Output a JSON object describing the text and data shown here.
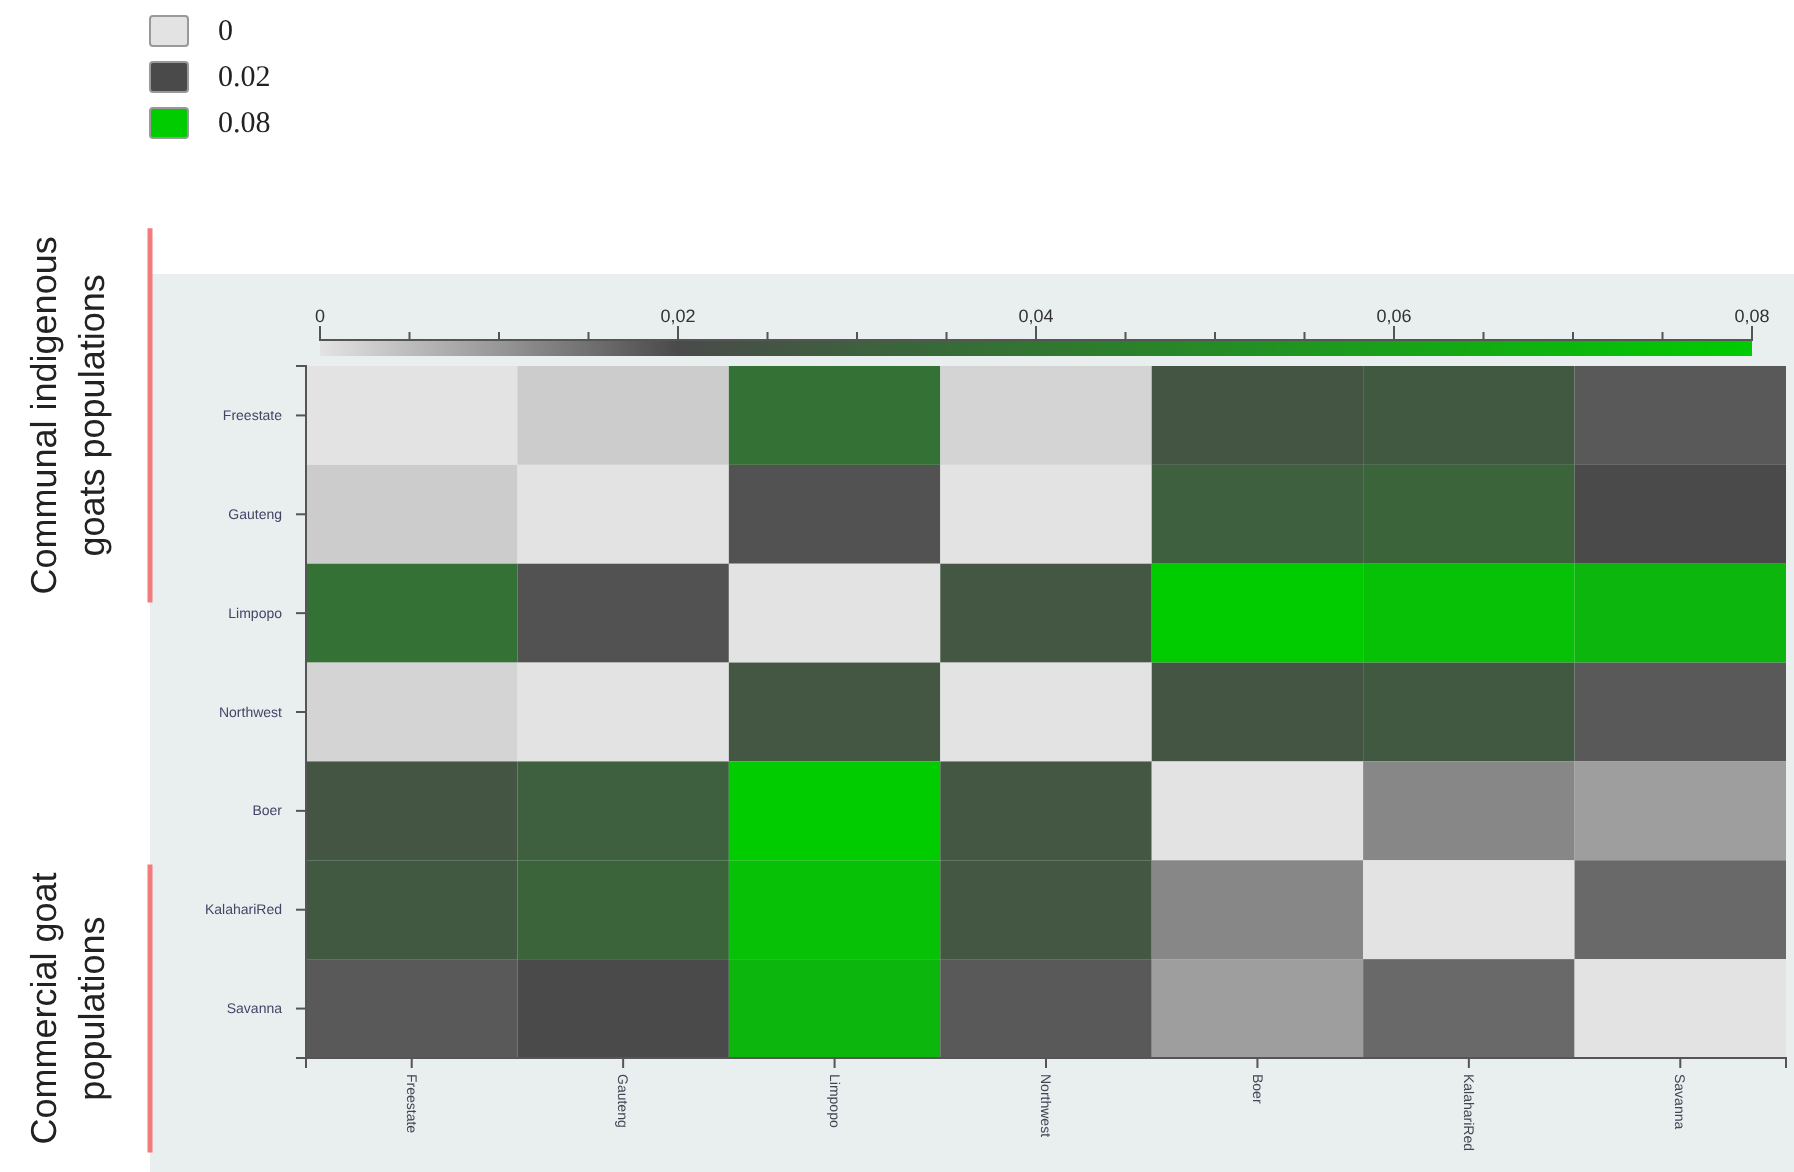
{
  "chart_data": {
    "type": "heatmap",
    "categories": [
      "Freestate",
      "Gauteng",
      "Limpopo",
      "Northwest",
      "Boer",
      "KalahariRed",
      "Savanna"
    ],
    "y_categories": [
      "Freestate",
      "Gauteng",
      "Limpopo",
      "Northwest",
      "Boer",
      "KalahariRed",
      "Savanna"
    ],
    "y2_categories": [
      "Communal indigenous goats populations",
      null,
      null,
      null,
      null,
      null,
      "Commercial goat populations"
    ],
    "cells": [
      [
        0,
        0.003,
        0.038,
        0.002,
        0.025,
        0.027,
        0.018
      ],
      [
        0.003,
        0,
        0.019,
        0,
        0.03,
        0.032,
        0.02
      ],
      [
        0.038,
        0.019,
        0,
        0.026,
        0.08,
        0.075,
        0.07
      ],
      [
        0.002,
        0,
        0.026,
        0,
        0.025,
        0.027,
        0.018
      ],
      [
        0.025,
        0.03,
        0.08,
        0.026,
        0,
        0.012,
        0.009
      ],
      [
        0.027,
        0.032,
        0.075,
        0.026,
        0.012,
        0,
        0.016
      ],
      [
        0.018,
        0.02,
        0.07,
        0.018,
        0.009,
        0.016,
        0
      ]
    ],
    "clim": [
      0,
      0.08
    ],
    "cticks": [
      0,
      {
        "value": 0.005,
        "label": null
      },
      {
        "value": 0.01,
        "label": null
      },
      {
        "value": 0.015,
        "label": null
      },
      {
        "value": 0.02,
        "label": "0,02"
      },
      {
        "value": 0.025,
        "label": null
      },
      {
        "value": 0.03,
        "label": null
      },
      {
        "value": 0.035,
        "label": null
      },
      {
        "value": 0.04,
        "label": "0,04"
      },
      {
        "value": 0.045,
        "label": null
      },
      {
        "value": 0.05,
        "label": null
      },
      {
        "value": 0.055,
        "label": null
      },
      {
        "value": 0.06,
        "label": "0,06"
      },
      {
        "value": 0.065,
        "label": null
      },
      {
        "value": 0.07,
        "label": null
      },
      {
        "value": 0.075,
        "label": null
      },
      {
        "value": 0.08,
        "label": "0,08"
      }
    ],
    "annotations": [
      "0",
      "0.02",
      "0.08"
    ],
    "colors": [
      "#e3e3e3",
      "#4a4a4a",
      "#00cc00"
    ]
  }
}
